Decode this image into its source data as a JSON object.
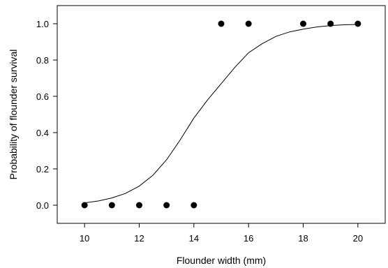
{
  "chart_data": {
    "type": "scatter",
    "title": "",
    "xlabel": "Flounder width (mm)",
    "ylabel": "Probability of flounder survival",
    "xlim": [
      9,
      21
    ],
    "ylim": [
      -0.1,
      1.1
    ],
    "xticks": [
      10,
      12,
      14,
      16,
      18,
      20
    ],
    "yticks": [
      0.0,
      0.2,
      0.4,
      0.6,
      0.8,
      1.0
    ],
    "xtick_labels": [
      "10",
      "12",
      "14",
      "16",
      "18",
      "20"
    ],
    "ytick_labels": [
      "0.0",
      "0.2",
      "0.4",
      "0.6",
      "0.8",
      "1.0"
    ],
    "grid": false,
    "legend": "none",
    "points": {
      "x": [
        10,
        11,
        12,
        13,
        14,
        15,
        16,
        18,
        19,
        20
      ],
      "y": [
        0,
        0,
        0,
        0,
        0,
        1,
        1,
        1,
        1,
        1
      ]
    },
    "fitted_curve": {
      "type": "logistic",
      "x": [
        10,
        10.5,
        11,
        11.5,
        12,
        12.5,
        13,
        13.5,
        14,
        14.5,
        15,
        15.5,
        16,
        16.5,
        17,
        17.5,
        18,
        18.5,
        19,
        19.5,
        20
      ],
      "y": [
        0.013,
        0.023,
        0.04,
        0.065,
        0.105,
        0.165,
        0.25,
        0.36,
        0.48,
        0.58,
        0.67,
        0.76,
        0.84,
        0.89,
        0.93,
        0.955,
        0.97,
        0.982,
        0.99,
        0.994,
        0.996
      ]
    },
    "colors": {
      "points": "#000000",
      "curve": "#000000",
      "axes": "#000000"
    }
  }
}
